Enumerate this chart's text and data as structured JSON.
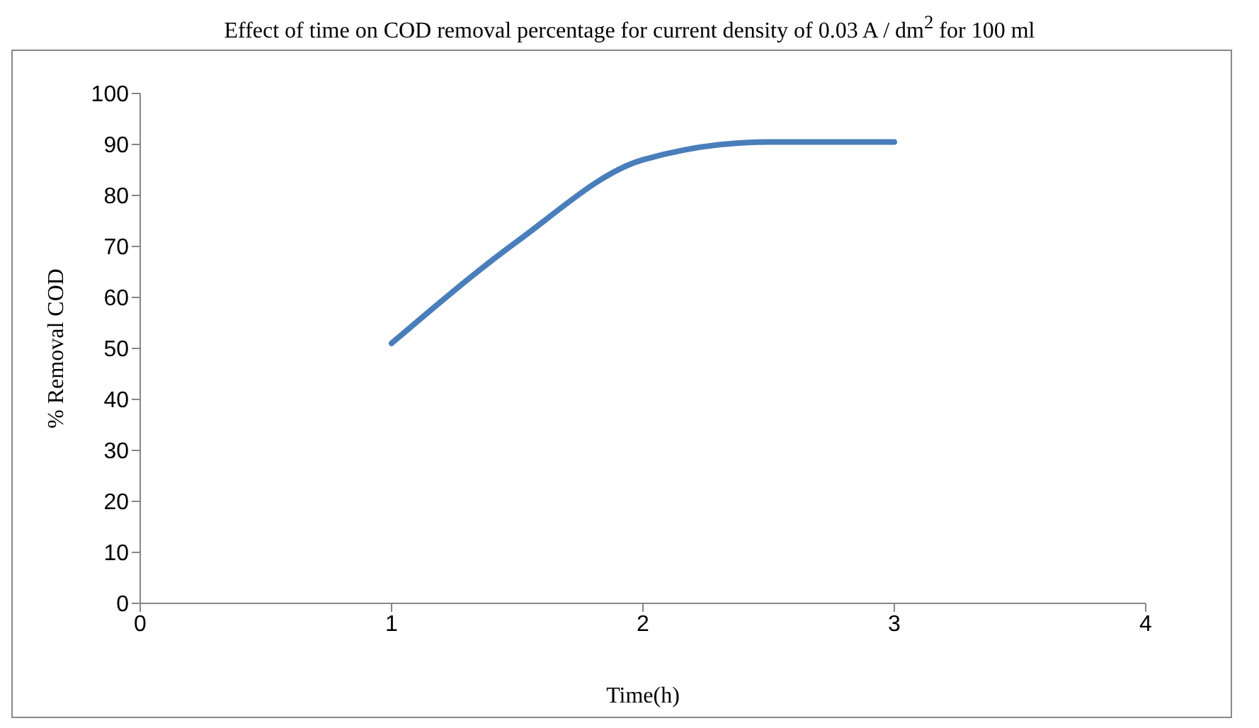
{
  "chart_data": {
    "type": "line",
    "title": "Effect of time on COD removal percentage for current density of 0.03 A / dm$^{2}$ for 100 ml",
    "xlabel": "Time(h)",
    "ylabel": "%  Removal COD",
    "x": [
      1,
      1.5,
      2,
      2.5,
      3
    ],
    "series": [
      {
        "color": "#4a7ebb",
        "values": [
          51,
          71,
          87,
          90.5,
          90.5
        ]
      }
    ],
    "xlim": [
      0,
      4
    ],
    "xticks": [
      0,
      1,
      2,
      3,
      4
    ],
    "ylim": [
      0,
      100
    ],
    "yticks": [
      0,
      10,
      20,
      30,
      40,
      50,
      60,
      70,
      80,
      90,
      100
    ],
    "grid": false,
    "legend": false,
    "marker": "none",
    "line_style": "solid"
  }
}
